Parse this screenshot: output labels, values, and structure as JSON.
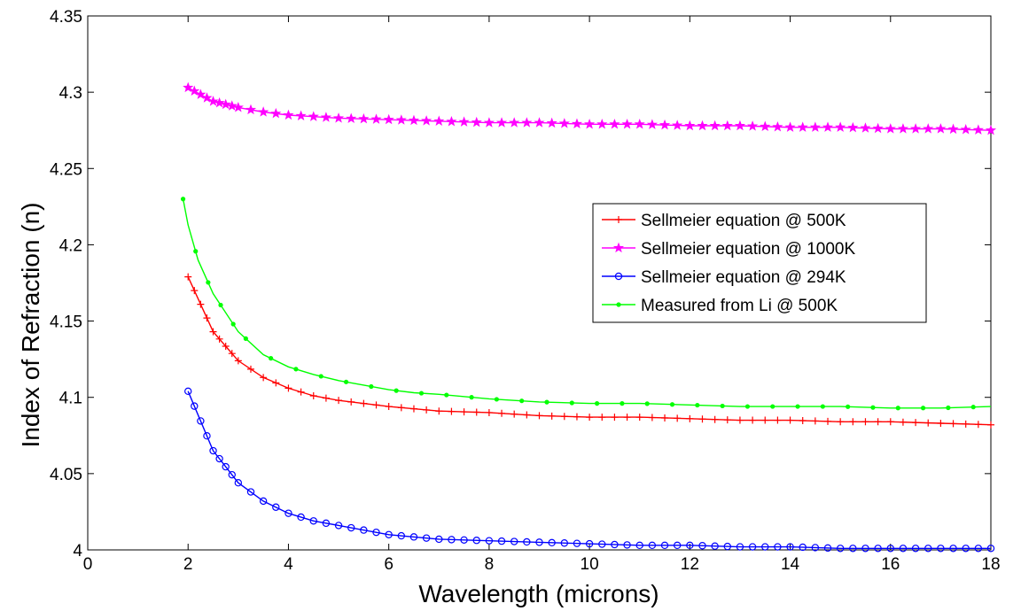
{
  "chart_data": {
    "type": "line",
    "title": "",
    "xlabel": "Wavelength (microns)",
    "ylabel": "Index of Refraction (n)",
    "xlim": [
      0,
      18
    ],
    "ylim": [
      4.0,
      4.35
    ],
    "xticks": [
      "0",
      "2",
      "4",
      "6",
      "8",
      "10",
      "12",
      "14",
      "16",
      "18"
    ],
    "yticks": [
      "4",
      "4.05",
      "4.1",
      "4.15",
      "4.2",
      "4.25",
      "4.3",
      "4.35"
    ],
    "grid": false,
    "legend_position": "right",
    "series": [
      {
        "name": "Sellmeier equation @ 500K",
        "color": "#ff0000",
        "marker": "plus",
        "x": [
          2,
          2.5,
          3,
          3.5,
          4,
          4.5,
          5,
          6,
          7,
          8,
          9,
          10,
          11,
          12,
          13,
          14,
          15,
          16,
          17,
          18
        ],
        "y": [
          4.179,
          4.143,
          4.124,
          4.113,
          4.106,
          4.101,
          4.098,
          4.094,
          4.091,
          4.09,
          4.088,
          4.087,
          4.087,
          4.086,
          4.085,
          4.085,
          4.084,
          4.084,
          4.083,
          4.082
        ]
      },
      {
        "name": "Sellmeier equation @ 1000K",
        "color": "#ff00ff",
        "marker": "star",
        "x": [
          2,
          2.5,
          3,
          3.5,
          4,
          4.5,
          5,
          6,
          7,
          8,
          9,
          10,
          11,
          12,
          13,
          14,
          15,
          16,
          17,
          18
        ],
        "y": [
          4.303,
          4.294,
          4.29,
          4.287,
          4.285,
          4.284,
          4.283,
          4.282,
          4.281,
          4.28,
          4.28,
          4.279,
          4.279,
          4.278,
          4.278,
          4.277,
          4.277,
          4.276,
          4.276,
          4.275
        ]
      },
      {
        "name": "Sellmeier equation @ 294K",
        "color": "#0000ff",
        "marker": "circle",
        "x": [
          2,
          2.5,
          3,
          3.5,
          4,
          4.5,
          5,
          6,
          7,
          8,
          9,
          10,
          11,
          12,
          13,
          14,
          15,
          16,
          17,
          18
        ],
        "y": [
          4.104,
          4.065,
          4.044,
          4.032,
          4.024,
          4.019,
          4.016,
          4.01,
          4.007,
          4.006,
          4.005,
          4.004,
          4.003,
          4.003,
          4.002,
          4.002,
          4.001,
          4.001,
          4.001,
          4.001
        ]
      },
      {
        "name": "Measured from Li @ 500K",
        "color": "#00ff00",
        "marker": "dot",
        "x": [
          1.9,
          2,
          2.2,
          2.5,
          3,
          3.5,
          4,
          4.5,
          5,
          5.5,
          6,
          6.5,
          7,
          8,
          9,
          10,
          11,
          12,
          13,
          14,
          15,
          16,
          17,
          18
        ],
        "y": [
          4.23,
          4.213,
          4.19,
          4.168,
          4.143,
          4.128,
          4.12,
          4.115,
          4.111,
          4.108,
          4.105,
          4.103,
          4.102,
          4.099,
          4.097,
          4.096,
          4.096,
          4.095,
          4.094,
          4.094,
          4.094,
          4.093,
          4.093,
          4.094
        ]
      }
    ]
  }
}
